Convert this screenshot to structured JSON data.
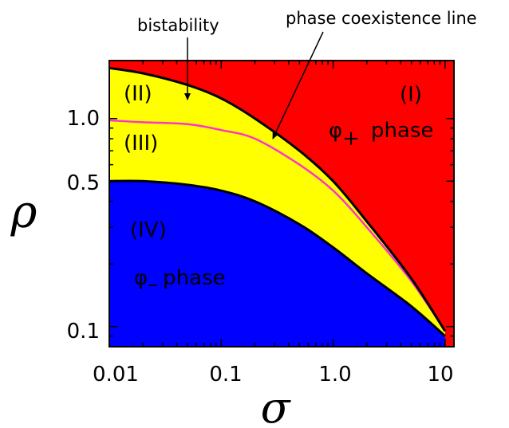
{
  "chart_data": {
    "type": "area",
    "title": "",
    "xlabel": "σ",
    "ylabel": "ρ",
    "xscale": "log",
    "yscale": "log",
    "xlim": [
      0.01,
      12
    ],
    "ylim": [
      0.08,
      1.9
    ],
    "xticks": [
      "0.01",
      "0.1",
      "1.0",
      "10"
    ],
    "xtick_values": [
      0.01,
      0.1,
      1.0,
      10
    ],
    "yticks": [
      "0.1",
      "0.5",
      "1.0"
    ],
    "ytick_values": [
      0.1,
      0.5,
      1.0
    ],
    "grid": false,
    "regions": [
      {
        "label": "(I)",
        "sublabel": "φ+ phase",
        "color": "#ff0000"
      },
      {
        "label": "(II)",
        "color": "#ffff00"
      },
      {
        "label": "(III)",
        "color": "#ffff00"
      },
      {
        "label": "(IV)",
        "sublabel": "φ− phase",
        "color": "#0000ff"
      }
    ],
    "series": [
      {
        "role": "upper-boundary",
        "color": "#000000",
        "x": [
          0.01,
          0.02,
          0.05,
          0.1,
          0.2,
          0.5,
          1.0,
          2.0,
          5.0,
          10.0
        ],
        "y": [
          1.75,
          1.65,
          1.45,
          1.25,
          1.0,
          0.7,
          0.5,
          0.32,
          0.17,
          0.095
        ]
      },
      {
        "role": "phase coexistence line",
        "color": "#ff33cc",
        "x": [
          0.01,
          0.02,
          0.05,
          0.1,
          0.2,
          0.5,
          1.0,
          2.0,
          5.0,
          10.0
        ],
        "y": [
          0.98,
          0.96,
          0.94,
          0.88,
          0.8,
          0.6,
          0.45,
          0.3,
          0.165,
          0.095
        ]
      },
      {
        "role": "lower-boundary",
        "color": "#000000",
        "x": [
          0.01,
          0.02,
          0.05,
          0.1,
          0.2,
          0.5,
          1.0,
          2.0,
          5.0,
          10.0
        ],
        "y": [
          0.5,
          0.5,
          0.48,
          0.45,
          0.4,
          0.31,
          0.24,
          0.18,
          0.125,
          0.09
        ]
      }
    ],
    "annotations": [
      {
        "text": "bistability",
        "target": "(II)"
      },
      {
        "text": "phase coexistence line",
        "target": "phase coexistence line"
      }
    ]
  }
}
